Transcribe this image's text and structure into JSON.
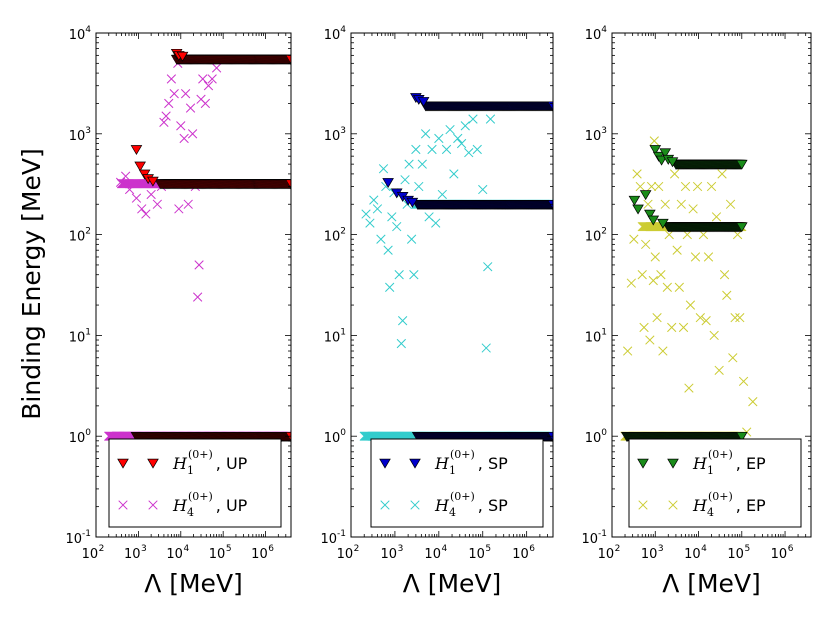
{
  "ylabel": "Binding Energy [MeV]",
  "xlabel": "Λ [MeV]",
  "legend": {
    "h1_base": "H",
    "h4_base": "H",
    "h1_sub": "1",
    "h4_sub": "4",
    "sup": "(0+)"
  },
  "xticks": [
    "2",
    "3",
    "4",
    "5",
    "6"
  ],
  "yticks": [
    "-1",
    "0",
    "1",
    "2",
    "3",
    "4"
  ],
  "colors": {
    "up_tri": "#ff0000",
    "up_x": "#cc33cc",
    "sp_tri": "#0000cc",
    "sp_x": "#33cccc",
    "ep_tri": "#1a8c1a",
    "ep_x": "#cccc33"
  },
  "chart_data": [
    {
      "type": "scatter",
      "panel": "UP",
      "xscale": "log",
      "yscale": "log",
      "xlim": [
        100,
        4000000
      ],
      "ylim": [
        0.1,
        10000
      ],
      "grid": false,
      "legend_position": "bottom-right",
      "series": [
        {
          "name": "H1(0+), UP",
          "label": "UP",
          "marker": "triangle-down",
          "color": "#ff0000",
          "bands": [
            {
              "x_from": 900,
              "x_to": 4000000,
              "y": 1
            },
            {
              "x_from": 3300,
              "x_to": 4000000,
              "y": 320
            },
            {
              "x_from": 8000,
              "x_to": 4000000,
              "y": 5500
            }
          ],
          "points": [
            {
              "x": 900,
              "y": 700
            },
            {
              "x": 1100,
              "y": 480
            },
            {
              "x": 1400,
              "y": 400
            },
            {
              "x": 1700,
              "y": 360
            },
            {
              "x": 2200,
              "y": 340
            },
            {
              "x": 8000,
              "y": 6300
            },
            {
              "x": 9000,
              "y": 6000
            },
            {
              "x": 11000,
              "y": 5900
            }
          ]
        },
        {
          "name": "H4(0+), UP",
          "label": "UP",
          "marker": "x",
          "color": "#cc33cc",
          "bands": [
            {
              "x_from": 200,
              "x_to": 4000000,
              "y": 1
            },
            {
              "x_from": 400,
              "x_to": 4000000,
              "y": 320
            }
          ],
          "points": [
            {
              "x": 380,
              "y": 330
            },
            {
              "x": 500,
              "y": 380
            },
            {
              "x": 620,
              "y": 280
            },
            {
              "x": 900,
              "y": 230
            },
            {
              "x": 1200,
              "y": 180
            },
            {
              "x": 1500,
              "y": 160
            },
            {
              "x": 2000,
              "y": 250
            },
            {
              "x": 2800,
              "y": 200
            },
            {
              "x": 3500,
              "y": 300
            },
            {
              "x": 4000,
              "y": 1300
            },
            {
              "x": 4500,
              "y": 1500
            },
            {
              "x": 5200,
              "y": 2000
            },
            {
              "x": 6000,
              "y": 3500
            },
            {
              "x": 7000,
              "y": 2500
            },
            {
              "x": 8500,
              "y": 5000
            },
            {
              "x": 9000,
              "y": 180
            },
            {
              "x": 10000,
              "y": 1200
            },
            {
              "x": 12000,
              "y": 900
            },
            {
              "x": 13000,
              "y": 2500
            },
            {
              "x": 15000,
              "y": 200
            },
            {
              "x": 17000,
              "y": 1800
            },
            {
              "x": 19000,
              "y": 1000
            },
            {
              "x": 22000,
              "y": 300
            },
            {
              "x": 25000,
              "y": 24
            },
            {
              "x": 27000,
              "y": 50
            },
            {
              "x": 30000,
              "y": 2200
            },
            {
              "x": 33000,
              "y": 3500
            },
            {
              "x": 38000,
              "y": 2000
            },
            {
              "x": 45000,
              "y": 3000
            },
            {
              "x": 55000,
              "y": 3500
            },
            {
              "x": 70000,
              "y": 4500
            }
          ]
        }
      ]
    },
    {
      "type": "scatter",
      "panel": "SP",
      "xscale": "log",
      "yscale": "log",
      "xlim": [
        100,
        4000000
      ],
      "ylim": [
        0.1,
        10000
      ],
      "grid": false,
      "legend_position": "bottom-right",
      "series": [
        {
          "name": "H1(0+), SP",
          "label": "SP",
          "marker": "triangle-down",
          "color": "#0000cc",
          "bands": [
            {
              "x_from": 3300,
              "x_to": 4000000,
              "y": 1
            },
            {
              "x_from": 3300,
              "x_to": 4000000,
              "y": 200
            },
            {
              "x_from": 5000,
              "x_to": 4000000,
              "y": 1900
            }
          ],
          "points": [
            {
              "x": 700,
              "y": 330
            },
            {
              "x": 1100,
              "y": 260
            },
            {
              "x": 1500,
              "y": 240
            },
            {
              "x": 2000,
              "y": 220
            },
            {
              "x": 2500,
              "y": 210
            },
            {
              "x": 3000,
              "y": 2300
            },
            {
              "x": 3500,
              "y": 2200
            },
            {
              "x": 4500,
              "y": 2100
            }
          ]
        },
        {
          "name": "H4(0+), SP",
          "label": "SP",
          "marker": "x",
          "color": "#33cccc",
          "bands": [
            {
              "x_from": 200,
              "x_to": 4000000,
              "y": 1
            },
            {
              "x_from": 3000,
              "x_to": 4000000,
              "y": 200
            }
          ],
          "points": [
            {
              "x": 220,
              "y": 160
            },
            {
              "x": 270,
              "y": 130
            },
            {
              "x": 330,
              "y": 220
            },
            {
              "x": 400,
              "y": 180
            },
            {
              "x": 480,
              "y": 90
            },
            {
              "x": 550,
              "y": 450
            },
            {
              "x": 620,
              "y": 300
            },
            {
              "x": 700,
              "y": 70
            },
            {
              "x": 760,
              "y": 30
            },
            {
              "x": 850,
              "y": 150
            },
            {
              "x": 950,
              "y": 260
            },
            {
              "x": 1100,
              "y": 120
            },
            {
              "x": 1250,
              "y": 40
            },
            {
              "x": 1400,
              "y": 8.3
            },
            {
              "x": 1500,
              "y": 14
            },
            {
              "x": 1700,
              "y": 350
            },
            {
              "x": 1900,
              "y": 200
            },
            {
              "x": 2100,
              "y": 500
            },
            {
              "x": 2400,
              "y": 90
            },
            {
              "x": 2700,
              "y": 40
            },
            {
              "x": 3000,
              "y": 700
            },
            {
              "x": 3500,
              "y": 300
            },
            {
              "x": 4200,
              "y": 500
            },
            {
              "x": 5000,
              "y": 1000
            },
            {
              "x": 6000,
              "y": 150
            },
            {
              "x": 7000,
              "y": 700
            },
            {
              "x": 8500,
              "y": 130
            },
            {
              "x": 10000,
              "y": 900
            },
            {
              "x": 12000,
              "y": 250
            },
            {
              "x": 15000,
              "y": 700
            },
            {
              "x": 18000,
              "y": 1100
            },
            {
              "x": 22000,
              "y": 400
            },
            {
              "x": 27000,
              "y": 900
            },
            {
              "x": 33000,
              "y": 800
            },
            {
              "x": 40000,
              "y": 1200
            },
            {
              "x": 48000,
              "y": 650
            },
            {
              "x": 60000,
              "y": 1400
            },
            {
              "x": 75000,
              "y": 700
            },
            {
              "x": 100000,
              "y": 280
            },
            {
              "x": 120000,
              "y": 7.5
            },
            {
              "x": 130000,
              "y": 48
            },
            {
              "x": 150000,
              "y": 1400
            }
          ]
        }
      ]
    },
    {
      "type": "scatter",
      "panel": "EP",
      "xscale": "log",
      "yscale": "log",
      "xlim": [
        100,
        4000000
      ],
      "ylim": [
        0.1,
        10000
      ],
      "grid": false,
      "legend_position": "bottom-right",
      "series": [
        {
          "name": "H1(0+), EP",
          "label": "EP",
          "marker": "triangle-down",
          "color": "#1a8c1a",
          "bands": [
            {
              "x_from": 220,
              "x_to": 100000,
              "y": 1
            },
            {
              "x_from": 2000,
              "x_to": 100000,
              "y": 120
            },
            {
              "x_from": 3000,
              "x_to": 100000,
              "y": 500
            }
          ],
          "points": [
            {
              "x": 330,
              "y": 220
            },
            {
              "x": 400,
              "y": 180
            },
            {
              "x": 600,
              "y": 250
            },
            {
              "x": 750,
              "y": 160
            },
            {
              "x": 900,
              "y": 140
            },
            {
              "x": 1000,
              "y": 700
            },
            {
              "x": 1200,
              "y": 600
            },
            {
              "x": 1400,
              "y": 550
            },
            {
              "x": 1500,
              "y": 130
            },
            {
              "x": 1700,
              "y": 650
            },
            {
              "x": 2000,
              "y": 560
            },
            {
              "x": 2500,
              "y": 530
            }
          ]
        },
        {
          "name": "H4(0+), EP",
          "label": "EP",
          "marker": "x",
          "color": "#cccc33",
          "bands": [
            {
              "x_from": 200,
              "x_to": 100000,
              "y": 1
            },
            {
              "x_from": 500,
              "x_to": 100000,
              "y": 120
            }
          ],
          "points": [
            {
              "x": 230,
              "y": 7
            },
            {
              "x": 280,
              "y": 33
            },
            {
              "x": 320,
              "y": 90
            },
            {
              "x": 380,
              "y": 400
            },
            {
              "x": 450,
              "y": 300
            },
            {
              "x": 500,
              "y": 40
            },
            {
              "x": 550,
              "y": 12
            },
            {
              "x": 600,
              "y": 80
            },
            {
              "x": 680,
              "y": 200
            },
            {
              "x": 750,
              "y": 9
            },
            {
              "x": 820,
              "y": 300
            },
            {
              "x": 900,
              "y": 35
            },
            {
              "x": 950,
              "y": 850
            },
            {
              "x": 1000,
              "y": 60
            },
            {
              "x": 1100,
              "y": 15
            },
            {
              "x": 1200,
              "y": 300
            },
            {
              "x": 1350,
              "y": 40
            },
            {
              "x": 1500,
              "y": 7
            },
            {
              "x": 1700,
              "y": 200
            },
            {
              "x": 1900,
              "y": 30
            },
            {
              "x": 2100,
              "y": 100
            },
            {
              "x": 2400,
              "y": 12
            },
            {
              "x": 2800,
              "y": 400
            },
            {
              "x": 3200,
              "y": 70
            },
            {
              "x": 3600,
              "y": 30
            },
            {
              "x": 4000,
              "y": 200
            },
            {
              "x": 4500,
              "y": 12
            },
            {
              "x": 5000,
              "y": 300
            },
            {
              "x": 5500,
              "y": 100
            },
            {
              "x": 6000,
              "y": 3
            },
            {
              "x": 6500,
              "y": 20
            },
            {
              "x": 7500,
              "y": 180
            },
            {
              "x": 8500,
              "y": 60
            },
            {
              "x": 9500,
              "y": 300
            },
            {
              "x": 11000,
              "y": 15
            },
            {
              "x": 13000,
              "y": 100
            },
            {
              "x": 15000,
              "y": 14
            },
            {
              "x": 17000,
              "y": 60
            },
            {
              "x": 20000,
              "y": 300
            },
            {
              "x": 23000,
              "y": 10
            },
            {
              "x": 26000,
              "y": 150
            },
            {
              "x": 30000,
              "y": 4.5
            },
            {
              "x": 35000,
              "y": 400
            },
            {
              "x": 40000,
              "y": 40
            },
            {
              "x": 45000,
              "y": 25
            },
            {
              "x": 55000,
              "y": 200
            },
            {
              "x": 62000,
              "y": 6
            },
            {
              "x": 70000,
              "y": 15
            },
            {
              "x": 80000,
              "y": 100
            },
            {
              "x": 90000,
              "y": 15
            },
            {
              "x": 110000,
              "y": 3.5
            },
            {
              "x": 130000,
              "y": 1.1
            },
            {
              "x": 180000,
              "y": 2.2
            }
          ]
        }
      ]
    }
  ]
}
